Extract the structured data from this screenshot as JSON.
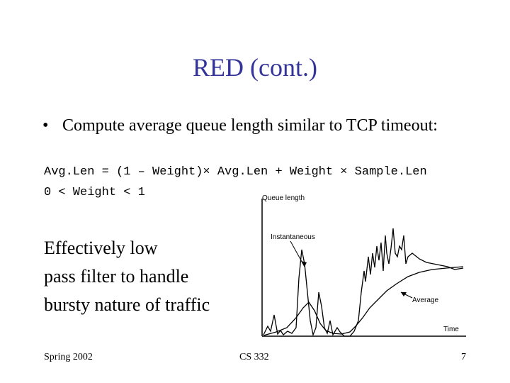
{
  "slide": {
    "title": "RED (cont.)",
    "bullet": {
      "marker": "•",
      "text": "Compute average queue length similar to TCP timeout:"
    },
    "formula_line1": "Avg.Len = (1 – Weight)× Avg.Len + Weight × Sample.Len",
    "formula_line2": "0 < Weight < 1",
    "effect_lines": [
      "Effectively low",
      "pass filter to handle",
      "bursty nature of traffic"
    ]
  },
  "figure": {
    "y_axis_label": "Queue length",
    "x_axis_label": "Time",
    "instantaneous_label": "Instantaneous",
    "average_label": "Average"
  },
  "footer": {
    "left": "Spring 2002",
    "center": "CS 332",
    "right": "7"
  },
  "colors": {
    "title": "#333399",
    "text": "#000000",
    "background": "#ffffff"
  }
}
